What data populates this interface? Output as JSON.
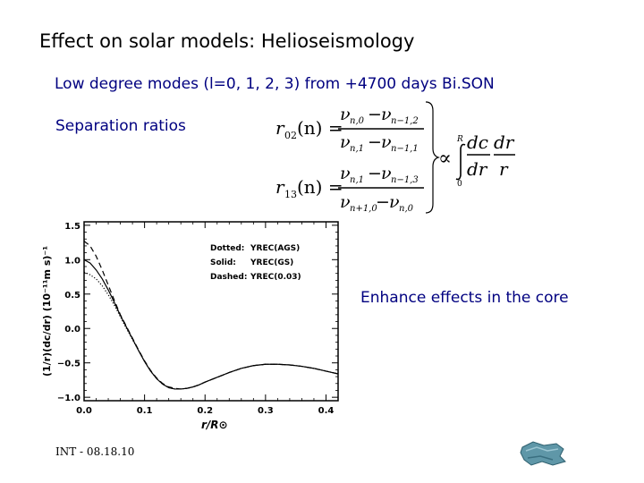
{
  "slide": {
    "title": "Effect on solar models: Helioseismology",
    "subtitle": "Low degree modes (l=0, 1, 2, 3) from +4700 days Bi.SON",
    "separation_label": "Separation ratios",
    "enhance_note": "Enhance effects in the core",
    "footer": "INT - 08.18.10"
  },
  "formula": {
    "r02": "r",
    "r02_sub": "02",
    "r13": "r",
    "r13_sub": "13",
    "n_arg": "(n) =",
    "nu": "ν",
    "num02_a_sub": "n,0",
    "num02_b_sub": "n−1,2",
    "den02_a_sub": "n,1",
    "den02_b_sub": "n−1,1",
    "num13_a_sub": "n,1",
    "num13_b_sub": "n−1,3",
    "den13_a_sub": "n+1,0",
    "den13_b_sub": "n,0",
    "minus": "−",
    "propto": "∝",
    "int_upper": "R",
    "int_lower": "0",
    "dc": "dc",
    "dr": "dr",
    "r": "r"
  },
  "chart_data": {
    "type": "line",
    "xlabel": "r/R⊙",
    "ylabel": "(1/r)(dc/dr) (10⁻¹¹m s)⁻¹",
    "xlim": [
      0.0,
      0.42
    ],
    "ylim": [
      -1.05,
      1.55
    ],
    "xticks": [
      "0.0",
      "0.1",
      "0.2",
      "0.3",
      "0.4"
    ],
    "yticks": [
      "1.5",
      "1.0",
      "0.5",
      "0.0",
      "−0.5",
      "−1.0"
    ],
    "legend_position": "top-right",
    "legend": [
      {
        "style": "Dotted:",
        "name": "YREC(AGS)"
      },
      {
        "style": "Solid:",
        "name": "YREC(GS)"
      },
      {
        "style": "Dashed:",
        "name": "YREC(0.03)"
      }
    ],
    "series": [
      {
        "name": "YREC(GS)",
        "dash": "solid",
        "x": [
          0.0,
          0.01,
          0.02,
          0.03,
          0.04,
          0.05,
          0.06,
          0.07,
          0.08,
          0.09,
          0.1,
          0.11,
          0.12,
          0.13,
          0.14,
          0.15,
          0.16,
          0.17,
          0.18,
          0.19,
          0.2,
          0.22,
          0.24,
          0.26,
          0.28,
          0.3,
          0.32,
          0.34,
          0.36,
          0.38,
          0.4,
          0.42
        ],
        "y": [
          1.0,
          0.95,
          0.85,
          0.72,
          0.56,
          0.38,
          0.19,
          0.02,
          -0.15,
          -0.32,
          -0.48,
          -0.62,
          -0.73,
          -0.81,
          -0.86,
          -0.88,
          -0.88,
          -0.87,
          -0.85,
          -0.82,
          -0.78,
          -0.71,
          -0.64,
          -0.58,
          -0.54,
          -0.52,
          -0.52,
          -0.53,
          -0.55,
          -0.58,
          -0.62,
          -0.66
        ]
      },
      {
        "name": "YREC(AGS)",
        "dash": "dotted",
        "x": [
          0.0,
          0.01,
          0.02,
          0.03,
          0.04,
          0.05,
          0.06,
          0.07,
          0.08,
          0.09,
          0.1,
          0.11,
          0.12,
          0.13,
          0.14,
          0.15,
          0.16,
          0.17,
          0.18,
          0.19,
          0.2,
          0.22,
          0.24,
          0.26,
          0.28,
          0.3,
          0.32,
          0.34,
          0.36,
          0.38,
          0.4,
          0.42
        ],
        "y": [
          0.82,
          0.78,
          0.72,
          0.62,
          0.49,
          0.34,
          0.17,
          0.0,
          -0.16,
          -0.32,
          -0.48,
          -0.62,
          -0.73,
          -0.81,
          -0.86,
          -0.88,
          -0.88,
          -0.87,
          -0.85,
          -0.82,
          -0.78,
          -0.71,
          -0.64,
          -0.58,
          -0.54,
          -0.52,
          -0.52,
          -0.53,
          -0.55,
          -0.58,
          -0.62,
          -0.66
        ]
      },
      {
        "name": "YREC(0.03)",
        "dash": "dashed",
        "x": [
          0.0,
          0.01,
          0.02,
          0.03,
          0.04,
          0.05,
          0.06,
          0.07,
          0.08,
          0.09,
          0.1,
          0.11,
          0.12,
          0.13,
          0.14,
          0.15,
          0.16,
          0.17,
          0.18,
          0.19,
          0.2,
          0.22,
          0.24,
          0.26,
          0.28,
          0.3,
          0.32,
          0.34,
          0.36,
          0.38,
          0.4,
          0.42
        ],
        "y": [
          1.27,
          1.2,
          1.05,
          0.85,
          0.63,
          0.41,
          0.2,
          0.03,
          -0.14,
          -0.31,
          -0.47,
          -0.61,
          -0.72,
          -0.8,
          -0.85,
          -0.87,
          -0.88,
          -0.87,
          -0.85,
          -0.82,
          -0.78,
          -0.71,
          -0.64,
          -0.58,
          -0.54,
          -0.52,
          -0.52,
          -0.53,
          -0.55,
          -0.58,
          -0.62,
          -0.66
        ]
      }
    ]
  },
  "icons": {
    "nav_logo": "navigation-logo-icon"
  }
}
